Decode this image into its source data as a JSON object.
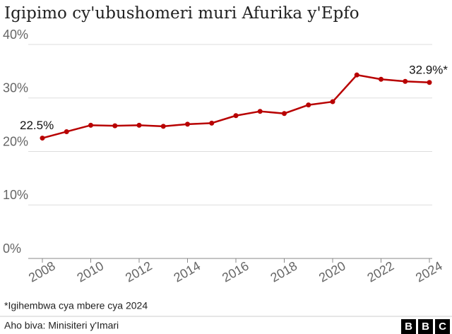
{
  "chart_data": {
    "type": "line",
    "title": "Igipimo cy'ubushomeri muri Afurika y'Epfo",
    "x": [
      2008,
      2009,
      2010,
      2011,
      2012,
      2013,
      2014,
      2015,
      2016,
      2017,
      2018,
      2019,
      2020,
      2021,
      2022,
      2023,
      2024
    ],
    "series": [
      {
        "name": "Igipimo cy'ubushomeri",
        "color": "#b80000",
        "values": [
          22.5,
          23.7,
          24.9,
          24.8,
          24.9,
          24.7,
          25.1,
          25.3,
          26.7,
          27.5,
          27.1,
          28.7,
          29.3,
          34.3,
          33.5,
          33.1,
          32.9
        ],
        "value_labels": [
          "22.5%",
          null,
          null,
          null,
          null,
          null,
          null,
          null,
          null,
          null,
          null,
          null,
          null,
          null,
          null,
          null,
          "32.9%*"
        ]
      }
    ],
    "xlim": [
      2008,
      2024
    ],
    "xticks": [
      2008,
      2010,
      2012,
      2014,
      2016,
      2018,
      2020,
      2022,
      2024
    ],
    "ylim": [
      0,
      40
    ],
    "yticks": [
      {
        "value": 0,
        "label": "0%"
      },
      {
        "value": 10,
        "label": "10%"
      },
      {
        "value": 20,
        "label": "20%"
      },
      {
        "value": 30,
        "label": "30%"
      },
      {
        "value": 40,
        "label": "40%"
      }
    ],
    "grid": true,
    "footnote": "*Igihembwa cya mbere cya 2024",
    "source": "Aho biva: Minisiteri y'Imari",
    "logo": [
      "B",
      "B",
      "C"
    ]
  }
}
